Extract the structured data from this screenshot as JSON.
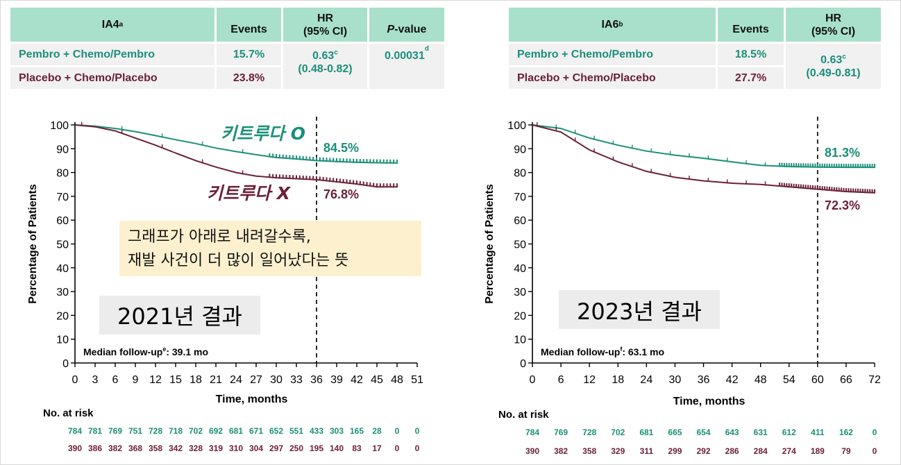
{
  "colors": {
    "pembro": "#1a8f7a",
    "placebo": "#6b2037",
    "header": "#a8e0cc",
    "cell": "#f1f1f1"
  },
  "tables": [
    {
      "title": "IA4",
      "title_sup": "a",
      "headers": {
        "events": "Events",
        "hr_line1": "HR",
        "hr_line2": "(95% CI)",
        "p_italic": "P",
        "p_rest": "-value"
      },
      "rows": [
        {
          "arm": "Pembro + Chemo/Pembro",
          "events": "15.7%"
        },
        {
          "arm": "Placebo + Chemo/Placebo",
          "events": "23.8%"
        }
      ],
      "hr_value": "0.63",
      "hr_sup": "c",
      "hr_ci": "(0.48-0.82)",
      "p_value": "0.00031",
      "p_sup": "d"
    },
    {
      "title": "IA6",
      "title_sup": "b",
      "headers": {
        "events": "Events",
        "hr_line1": "HR",
        "hr_line2": "(95% CI)"
      },
      "rows": [
        {
          "arm": "Pembro + Chemo/Pembro",
          "events": "18.5%"
        },
        {
          "arm": "Placebo + Chemo/Placebo",
          "events": "27.7%"
        }
      ],
      "hr_value": "0.63",
      "hr_sup": "c",
      "hr_ci": "(0.49-0.81)"
    }
  ],
  "chart_data": [
    {
      "type": "line",
      "ylabel": "Percentage of Patients",
      "xlabel": "Time, months",
      "ylim": [
        0,
        100
      ],
      "yticks": [
        0,
        10,
        20,
        30,
        40,
        50,
        60,
        70,
        80,
        90,
        100
      ],
      "xlim": [
        0,
        51
      ],
      "xticks": [
        0,
        3,
        6,
        9,
        12,
        15,
        18,
        21,
        24,
        27,
        30,
        33,
        36,
        39,
        42,
        45,
        48,
        51
      ],
      "reference_line_x": 36,
      "series": [
        {
          "key": "pembro",
          "name": "키트루다 O",
          "end_label": "84.5%",
          "points": [
            [
              0,
              100
            ],
            [
              3,
              99.5
            ],
            [
              6,
              98.5
            ],
            [
              9,
              97.2
            ],
            [
              12,
              95.5
            ],
            [
              15,
              93.8
            ],
            [
              18,
              92.2
            ],
            [
              21,
              90.3
            ],
            [
              24,
              88.8
            ],
            [
              27,
              87.5
            ],
            [
              30,
              86.3
            ],
            [
              33,
              85.7
            ],
            [
              36,
              85
            ],
            [
              39,
              84.6
            ],
            [
              42,
              84.3
            ],
            [
              45,
              84.1
            ],
            [
              48,
              84
            ]
          ]
        },
        {
          "key": "placebo",
          "name": "키트루다 X",
          "end_label": "76.8%",
          "points": [
            [
              0,
              100
            ],
            [
              3,
              99.2
            ],
            [
              6,
              97.5
            ],
            [
              9,
              94.5
            ],
            [
              12,
              91.5
            ],
            [
              15,
              88.2
            ],
            [
              18,
              85
            ],
            [
              21,
              82.3
            ],
            [
              24,
              80
            ],
            [
              27,
              78.5
            ],
            [
              30,
              77.8
            ],
            [
              33,
              77.4
            ],
            [
              36,
              77
            ],
            [
              39,
              76.1
            ],
            [
              42,
              75.2
            ],
            [
              45,
              74
            ],
            [
              48,
              74
            ]
          ]
        }
      ],
      "at_risk": {
        "label": "No. at risk",
        "pembro": [
          "784",
          "781",
          "769",
          "751",
          "728",
          "718",
          "702",
          "692",
          "681",
          "671",
          "652",
          "551",
          "433",
          "303",
          "165",
          "28",
          "0",
          "0"
        ],
        "placebo": [
          "390",
          "386",
          "382",
          "368",
          "358",
          "342",
          "328",
          "319",
          "310",
          "304",
          "297",
          "250",
          "195",
          "140",
          "83",
          "17",
          "0",
          "0"
        ]
      },
      "median_follow_up": {
        "text": "Median follow-up",
        "sup": "e",
        "value": ": 39.1 mo"
      },
      "result_label": "2021년 결과",
      "note": [
        "그래프가 아래로 내려갈수록,",
        "재발 사건이 더 많이 일어났다는 뜻"
      ]
    },
    {
      "type": "line",
      "ylabel": "Percentage of Patients",
      "xlabel": "Time, months",
      "ylim": [
        0,
        100
      ],
      "yticks": [
        0,
        10,
        20,
        30,
        40,
        50,
        60,
        70,
        80,
        90,
        100
      ],
      "xlim": [
        0,
        72
      ],
      "xticks": [
        0,
        6,
        12,
        18,
        24,
        30,
        36,
        42,
        48,
        54,
        60,
        66,
        72
      ],
      "reference_line_x": 60,
      "series": [
        {
          "key": "pembro",
          "end_label": "81.3%",
          "points": [
            [
              0,
              100
            ],
            [
              6,
              98.5
            ],
            [
              12,
              94.5
            ],
            [
              18,
              91.5
            ],
            [
              24,
              89
            ],
            [
              30,
              87.3
            ],
            [
              36,
              86
            ],
            [
              42,
              84.5
            ],
            [
              48,
              83
            ],
            [
              54,
              82.5
            ],
            [
              60,
              82.3
            ],
            [
              66,
              82.2
            ],
            [
              72,
              82.2
            ]
          ]
        },
        {
          "key": "placebo",
          "end_label": "72.3%",
          "points": [
            [
              0,
              100
            ],
            [
              6,
              97
            ],
            [
              12,
              89.5
            ],
            [
              18,
              84.5
            ],
            [
              24,
              80.5
            ],
            [
              30,
              78
            ],
            [
              36,
              76.5
            ],
            [
              42,
              75.5
            ],
            [
              48,
              75
            ],
            [
              54,
              74
            ],
            [
              60,
              73
            ],
            [
              66,
              72
            ],
            [
              72,
              71.5
            ]
          ]
        }
      ],
      "at_risk": {
        "label": "No. at risk",
        "pembro": [
          "784",
          "769",
          "728",
          "702",
          "681",
          "665",
          "654",
          "643",
          "631",
          "612",
          "411",
          "162",
          "0"
        ],
        "placebo": [
          "390",
          "382",
          "358",
          "329",
          "311",
          "299",
          "292",
          "286",
          "284",
          "274",
          "189",
          "79",
          "0"
        ]
      },
      "median_follow_up": {
        "text": "Median follow-up",
        "sup": "f",
        "value": ": 63.1 mo"
      },
      "result_label": "2023년 결과"
    }
  ]
}
